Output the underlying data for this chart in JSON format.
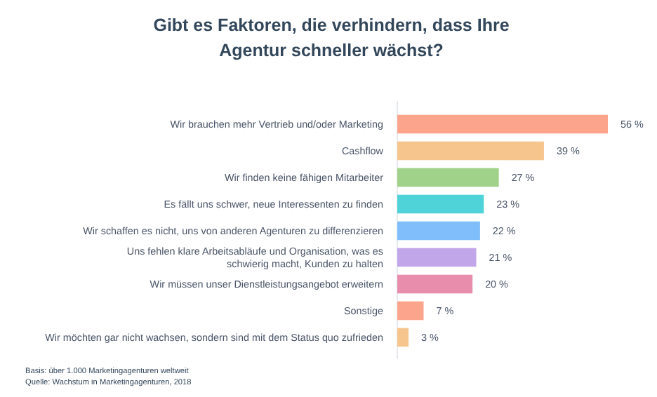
{
  "chart_data": {
    "type": "bar",
    "orientation": "horizontal",
    "title": "Gibt es Faktoren, die verhindern, dass Ihre\nAgentur schneller wächst?",
    "categories": [
      "Wir brauchen mehr Vertrieb und/oder Marketing",
      "Cashflow",
      "Wir finden keine fähigen Mitarbeiter",
      "Es fällt uns schwer, neue Interessenten zu finden",
      "Wir schaffen es nicht, uns von anderen Agenturen zu differenzieren",
      "Uns fehlen klare Arbeitsabläufe und Organisation, was es\nschwierig macht, Kunden zu halten",
      "Wir müssen unser Dienstleistungsangebot erweitern",
      "Sonstige",
      "Wir möchten gar nicht wachsen, sondern sind mit dem Status quo zufrieden"
    ],
    "values": [
      56,
      39,
      27,
      23,
      22,
      21,
      20,
      7,
      3
    ],
    "colors": [
      "#fda58c",
      "#f6c58e",
      "#a0d28a",
      "#4fd3d9",
      "#7fbdfb",
      "#c1a6ea",
      "#e98dad",
      "#fda58c",
      "#f6c58e"
    ],
    "value_labels": [
      "56 %",
      "39 %",
      "27 %",
      "23 %",
      "22 %",
      "21 %",
      "20 %",
      "7 %",
      "3 %"
    ],
    "annotations": [
      "Basis: über 1.000 Marketingagenturen weltweit",
      "Quelle: Wachstum in Marketingagenturen, 2018"
    ]
  }
}
